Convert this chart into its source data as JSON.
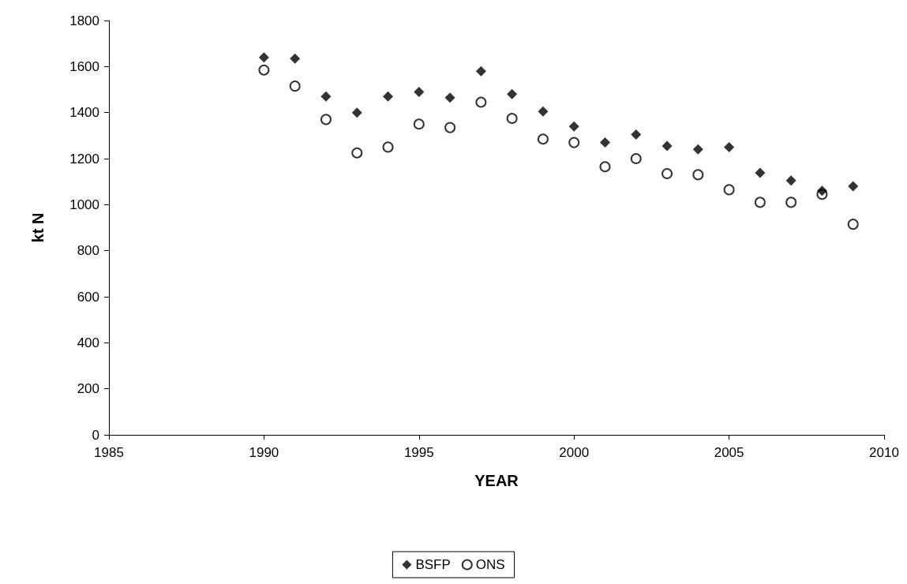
{
  "chart_data": {
    "type": "scatter",
    "xlabel": "YEAR",
    "ylabel": "kt N",
    "x": [
      1990,
      1991,
      1992,
      1993,
      1994,
      1995,
      1996,
      1997,
      1998,
      1999,
      2000,
      2001,
      2002,
      2003,
      2004,
      2005,
      2006,
      2007,
      2008,
      2009
    ],
    "series": [
      {
        "name": "BSFP",
        "color": "#000000",
        "marker": "diamond",
        "values": [
          1640,
          1635,
          1470,
          1400,
          1470,
          1490,
          1465,
          1580,
          1480,
          1405,
          1340,
          1270,
          1305,
          1255,
          1240,
          1250,
          1138,
          1105,
          1060,
          1080
        ]
      },
      {
        "name": "ONS",
        "color": "#000000",
        "marker": "circle",
        "values": [
          1585,
          1515,
          1370,
          1225,
          1250,
          1350,
          1335,
          1445,
          1375,
          1285,
          1270,
          1165,
          1200,
          1135,
          1130,
          1065,
          1010,
          1010,
          1045,
          915
        ]
      }
    ],
    "xlim": [
      1985,
      2010
    ],
    "xticks": [
      1985,
      1990,
      1995,
      2000,
      2005,
      2010
    ],
    "ylim": [
      0,
      1800
    ],
    "yticks": [
      0,
      200,
      400,
      600,
      800,
      1000,
      1200,
      1400,
      1600,
      1800
    ],
    "grid": false,
    "legend": "bottom"
  }
}
